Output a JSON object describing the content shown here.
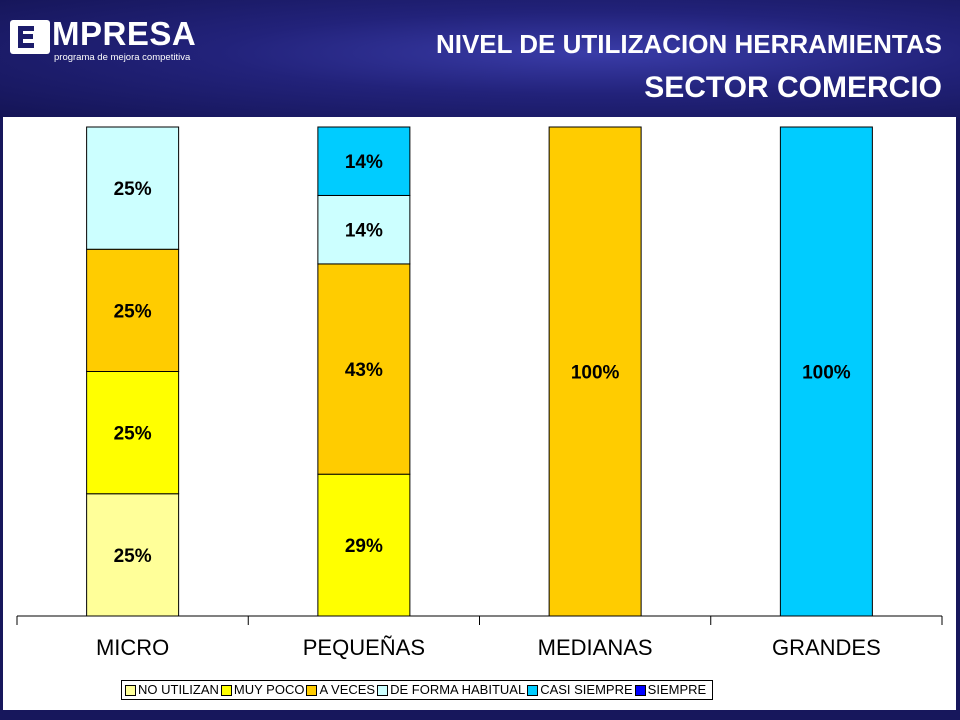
{
  "header": {
    "logo_text": "MPRESA",
    "logo_tagline": "programa de mejora competitiva",
    "title_line1": "NIVEL DE UTILIZACION HERRAMIENTAS",
    "title_line2": "SECTOR COMERCIO"
  },
  "chart_data": {
    "type": "bar",
    "stacked": true,
    "categories": [
      "MICRO",
      "PEQUEÑAS",
      "MEDIANAS",
      "GRANDES"
    ],
    "series": [
      {
        "name": "NO UTILIZAN",
        "color": "#ffff99",
        "values": [
          25,
          0,
          0,
          0
        ],
        "labels": [
          "25%",
          "",
          "",
          ""
        ]
      },
      {
        "name": "MUY POCO",
        "color": "#ffff00",
        "values": [
          25,
          29,
          0,
          0
        ],
        "labels": [
          "25%",
          "29%",
          "",
          ""
        ]
      },
      {
        "name": "A VECES",
        "color": "#ffcc00",
        "values": [
          25,
          43,
          100,
          0
        ],
        "labels": [
          "25%",
          "43%",
          "100%",
          ""
        ]
      },
      {
        "name": "DE FORMA HABITUAL",
        "color": "#ccffff",
        "values": [
          25,
          14,
          0,
          0
        ],
        "labels": [
          "25%",
          "14%",
          "",
          ""
        ]
      },
      {
        "name": "CASI SIEMPRE",
        "color": "#00ccff",
        "values": [
          0,
          14,
          0,
          100
        ],
        "labels": [
          "",
          "14%",
          "",
          "100%"
        ]
      },
      {
        "name": "SIEMPRE",
        "color": "#0000ff",
        "values": [
          0,
          0,
          0,
          0
        ],
        "labels": [
          "",
          "",
          "",
          ""
        ]
      }
    ],
    "ylim": [
      0,
      100
    ],
    "grid": false,
    "legend": "bottom"
  }
}
